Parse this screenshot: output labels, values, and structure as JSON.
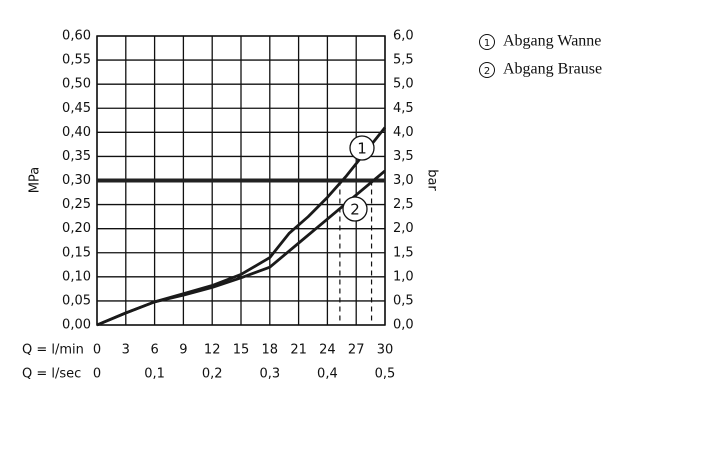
{
  "chart_data": {
    "type": "line",
    "y_label": "MPa",
    "y2_label": "bar",
    "x_label": "Q = l/min",
    "x2_label": "Q = l/sec",
    "xlim": [
      0,
      30
    ],
    "xticks": [
      0,
      3,
      6,
      9,
      12,
      15,
      18,
      21,
      24,
      27,
      30
    ],
    "x2lim": [
      0,
      0.5
    ],
    "x2ticks": [
      0,
      {
        "value": 0.1,
        "label": "0,1"
      },
      {
        "value": 0.2,
        "label": "0,2"
      },
      {
        "value": 0.3,
        "label": "0,3"
      },
      {
        "value": 0.4,
        "label": "0,4"
      },
      {
        "value": 0.5,
        "label": "0,5"
      }
    ],
    "ylim": [
      0,
      0.6
    ],
    "yticks": [
      {
        "value": 0,
        "label": "0,00"
      },
      {
        "value": 0.05,
        "label": "0,05"
      },
      {
        "value": 0.1,
        "label": "0,10"
      },
      {
        "value": 0.15,
        "label": "0,15"
      },
      {
        "value": 0.2,
        "label": "0,20"
      },
      {
        "value": 0.25,
        "label": "0,25"
      },
      {
        "value": 0.3,
        "label": "0,30"
      },
      {
        "value": 0.35,
        "label": "0,35"
      },
      {
        "value": 0.4,
        "label": "0,40"
      },
      {
        "value": 0.45,
        "label": "0,45"
      },
      {
        "value": 0.5,
        "label": "0,50"
      },
      {
        "value": 0.55,
        "label": "0,55"
      },
      {
        "value": 0.6,
        "label": "0,60"
      }
    ],
    "y2lim": [
      0,
      6
    ],
    "y2ticks": [
      {
        "value": 0,
        "label": "0,0"
      },
      {
        "value": 0.5,
        "label": "0,5"
      },
      {
        "value": 1,
        "label": "1,0"
      },
      {
        "value": 1.5,
        "label": "1,5"
      },
      {
        "value": 2,
        "label": "2,0"
      },
      {
        "value": 2.5,
        "label": "2,5"
      },
      {
        "value": 3,
        "label": "3,0"
      },
      {
        "value": 3.5,
        "label": "3,5"
      },
      {
        "value": 4,
        "label": "4,0"
      },
      {
        "value": 4.5,
        "label": "4,5"
      },
      {
        "value": 5,
        "label": "5,0"
      },
      {
        "value": 5.5,
        "label": "5,5"
      },
      {
        "value": 6,
        "label": "6,0"
      }
    ],
    "grid": true,
    "reference_y": 0.3,
    "crossings_x": [
      25.3,
      28.6
    ],
    "series": [
      {
        "name": "Abgang Wanne",
        "label": "1",
        "color": "#1a1a1a",
        "x": [
          0,
          3,
          6,
          9,
          12,
          15,
          18,
          20,
          22,
          24,
          26,
          28,
          30
        ],
        "values": [
          0,
          0.025,
          0.048,
          0.065,
          0.082,
          0.105,
          0.14,
          0.19,
          0.225,
          0.265,
          0.31,
          0.36,
          0.41
        ]
      },
      {
        "name": "Abgang Brause",
        "label": "2",
        "color": "#1a1a1a",
        "x": [
          0,
          3,
          6,
          9,
          12,
          15,
          18,
          21,
          24,
          27,
          30
        ],
        "values": [
          0,
          0.025,
          0.048,
          0.062,
          0.078,
          0.098,
          0.12,
          0.17,
          0.22,
          0.27,
          0.32
        ]
      }
    ]
  }
}
